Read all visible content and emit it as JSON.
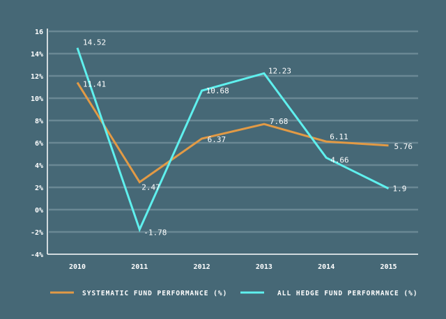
{
  "chart_data": {
    "type": "line",
    "title": "",
    "xlabel": "",
    "ylabel": "",
    "x": [
      "2010",
      "2011",
      "2012",
      "2013",
      "2014",
      "2015"
    ],
    "ylim": [
      -4,
      16
    ],
    "yticks": [
      16,
      14,
      12,
      10,
      8,
      6,
      4,
      2,
      0,
      -2,
      -4
    ],
    "ytick_labels": [
      "16",
      "14%",
      "12%",
      "10%",
      "8%",
      "6%",
      "4%",
      "2%",
      "0%",
      "-2%",
      "-4%"
    ],
    "grid": true,
    "legend_position": "bottom",
    "series": [
      {
        "name": "SYSTEMATIC FUND PERFORMANCE (%)",
        "color": "#e29a45",
        "values": [
          11.41,
          2.47,
          6.37,
          7.68,
          6.11,
          5.76
        ],
        "labels": [
          "11.41",
          "2.47",
          "6.37",
          "7.68",
          "6.11",
          "5.76"
        ]
      },
      {
        "name": "ALL HEDGE FUND PERFORMANCE (%)",
        "color": "#5ff0ee",
        "values": [
          14.52,
          -1.78,
          10.68,
          12.23,
          4.66,
          1.9
        ],
        "labels": [
          "14.52",
          "-1.78",
          "10.68",
          "12.23",
          "4.66",
          "1.9"
        ]
      }
    ]
  }
}
